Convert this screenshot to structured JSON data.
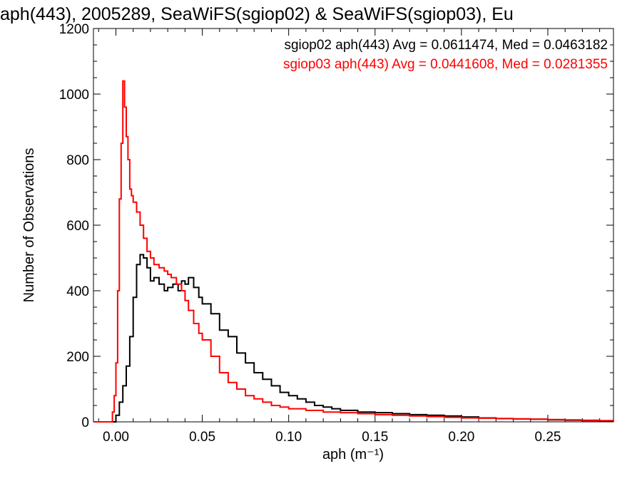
{
  "chart_data": {
    "type": "line",
    "title": "aph(443), 2005289, SeaWiFS(sgiop02) & SeaWiFS(sgiop03), Eu",
    "xlabel": "aph (m⁻¹)",
    "ylabel": "Number of Observations",
    "xlim": [
      -0.013,
      0.288
    ],
    "ylim": [
      0,
      1200
    ],
    "x_ticks": [
      0.0,
      0.05,
      0.1,
      0.15,
      0.2,
      0.25
    ],
    "x_tick_labels": [
      "0.00",
      "0.05",
      "0.10",
      "0.15",
      "0.20",
      "0.25"
    ],
    "y_ticks": [
      0,
      200,
      400,
      600,
      800,
      1000,
      1200
    ],
    "y_tick_labels": [
      "0",
      "200",
      "400",
      "600",
      "800",
      "1000",
      "1200"
    ],
    "grid": false,
    "step": true,
    "annotations": [
      {
        "text": "sgiop02 aph(443) Avg = 0.0611474, Med = 0.0463182",
        "color": "#000000"
      },
      {
        "text": "sgiop03 aph(443) Avg = 0.0441608, Med = 0.0281355",
        "color": "#ff0000"
      }
    ],
    "series": [
      {
        "color": "#000000",
        "x": [
          -0.013,
          -0.002,
          0.0,
          0.002,
          0.004,
          0.006,
          0.008,
          0.01,
          0.012,
          0.014,
          0.016,
          0.018,
          0.02,
          0.022,
          0.025,
          0.028,
          0.03,
          0.033,
          0.036,
          0.038,
          0.04,
          0.042,
          0.045,
          0.048,
          0.05,
          0.055,
          0.06,
          0.065,
          0.07,
          0.075,
          0.08,
          0.085,
          0.09,
          0.095,
          0.1,
          0.105,
          0.11,
          0.115,
          0.12,
          0.125,
          0.13,
          0.14,
          0.15,
          0.16,
          0.17,
          0.18,
          0.19,
          0.2,
          0.21,
          0.22,
          0.23,
          0.24,
          0.25,
          0.26,
          0.27,
          0.28,
          0.288
        ],
        "y": [
          0,
          0,
          20,
          60,
          110,
          170,
          260,
          380,
          480,
          510,
          500,
          470,
          430,
          440,
          420,
          400,
          410,
          420,
          400,
          430,
          420,
          440,
          410,
          380,
          360,
          330,
          280,
          260,
          210,
          180,
          150,
          130,
          110,
          90,
          80,
          70,
          60,
          50,
          45,
          40,
          35,
          30,
          28,
          25,
          22,
          20,
          18,
          15,
          12,
          10,
          9,
          8,
          6,
          5,
          4,
          3,
          3
        ]
      },
      {
        "color": "#ff0000",
        "x": [
          -0.013,
          -0.003,
          -0.002,
          -0.001,
          0.0,
          0.001,
          0.002,
          0.003,
          0.004,
          0.005,
          0.006,
          0.007,
          0.008,
          0.009,
          0.01,
          0.012,
          0.014,
          0.016,
          0.018,
          0.02,
          0.022,
          0.025,
          0.028,
          0.03,
          0.032,
          0.035,
          0.038,
          0.04,
          0.042,
          0.045,
          0.048,
          0.05,
          0.055,
          0.06,
          0.065,
          0.07,
          0.075,
          0.08,
          0.085,
          0.09,
          0.095,
          0.1,
          0.11,
          0.12,
          0.13,
          0.14,
          0.15,
          0.16,
          0.17,
          0.18,
          0.19,
          0.2,
          0.21,
          0.22,
          0.23,
          0.24,
          0.25,
          0.26,
          0.27,
          0.28,
          0.288
        ],
        "y": [
          0,
          0,
          30,
          80,
          180,
          400,
          680,
          850,
          1040,
          960,
          870,
          800,
          710,
          690,
          670,
          640,
          600,
          560,
          520,
          500,
          480,
          470,
          460,
          450,
          440,
          420,
          400,
          370,
          340,
          300,
          270,
          250,
          200,
          150,
          120,
          100,
          80,
          70,
          60,
          50,
          45,
          40,
          35,
          30,
          28,
          25,
          22,
          20,
          18,
          16,
          14,
          12,
          11,
          10,
          9,
          8,
          7,
          6,
          5,
          4,
          3
        ]
      }
    ]
  }
}
